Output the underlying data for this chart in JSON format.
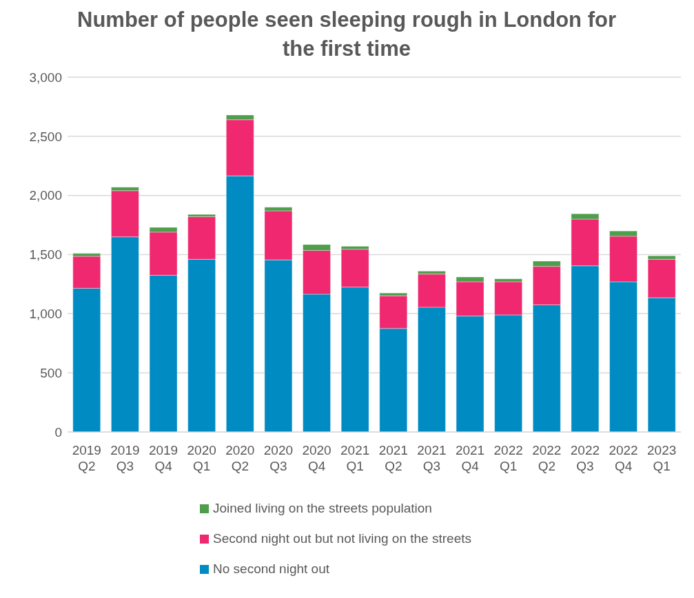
{
  "chart_data": {
    "type": "bar",
    "title": "Number of people seen sleeping rough in London for the first time",
    "categories": [
      "2019 Q2",
      "2019 Q3",
      "2019 Q4",
      "2020 Q1",
      "2020 Q2",
      "2020 Q3",
      "2020 Q4",
      "2021 Q1",
      "2021 Q2",
      "2021 Q3",
      "2021 Q4",
      "2022 Q1",
      "2022 Q2",
      "2022 Q3",
      "2022 Q4",
      "2023 Q1"
    ],
    "stacked": true,
    "series": [
      {
        "name": "No second night out",
        "color": "#008bc2",
        "values": [
          1215,
          1650,
          1325,
          1460,
          2165,
          1455,
          1165,
          1225,
          875,
          1055,
          980,
          990,
          1075,
          1405,
          1270,
          1135
        ]
      },
      {
        "name": "Second night out but not living on the streets",
        "color": "#ef2870",
        "values": [
          270,
          390,
          365,
          360,
          475,
          415,
          370,
          320,
          275,
          280,
          290,
          280,
          325,
          395,
          385,
          325
        ]
      },
      {
        "name": "Joined living on the streets population",
        "color": "#4e9e4c",
        "values": [
          25,
          30,
          40,
          20,
          40,
          30,
          50,
          25,
          25,
          25,
          40,
          25,
          45,
          45,
          45,
          30
        ]
      }
    ],
    "ylim": [
      0,
      3000
    ],
    "yticks": [
      {
        "value": 0,
        "label": "0"
      },
      {
        "value": 500,
        "label": "500"
      },
      {
        "value": 1000,
        "label": "1,000"
      },
      {
        "value": 1500,
        "label": "1,500"
      },
      {
        "value": 2000,
        "label": "2,000"
      },
      {
        "value": 2500,
        "label": "2,500"
      },
      {
        "value": 3000,
        "label": "3,000"
      }
    ],
    "grid": "y",
    "legend": "bottom"
  }
}
